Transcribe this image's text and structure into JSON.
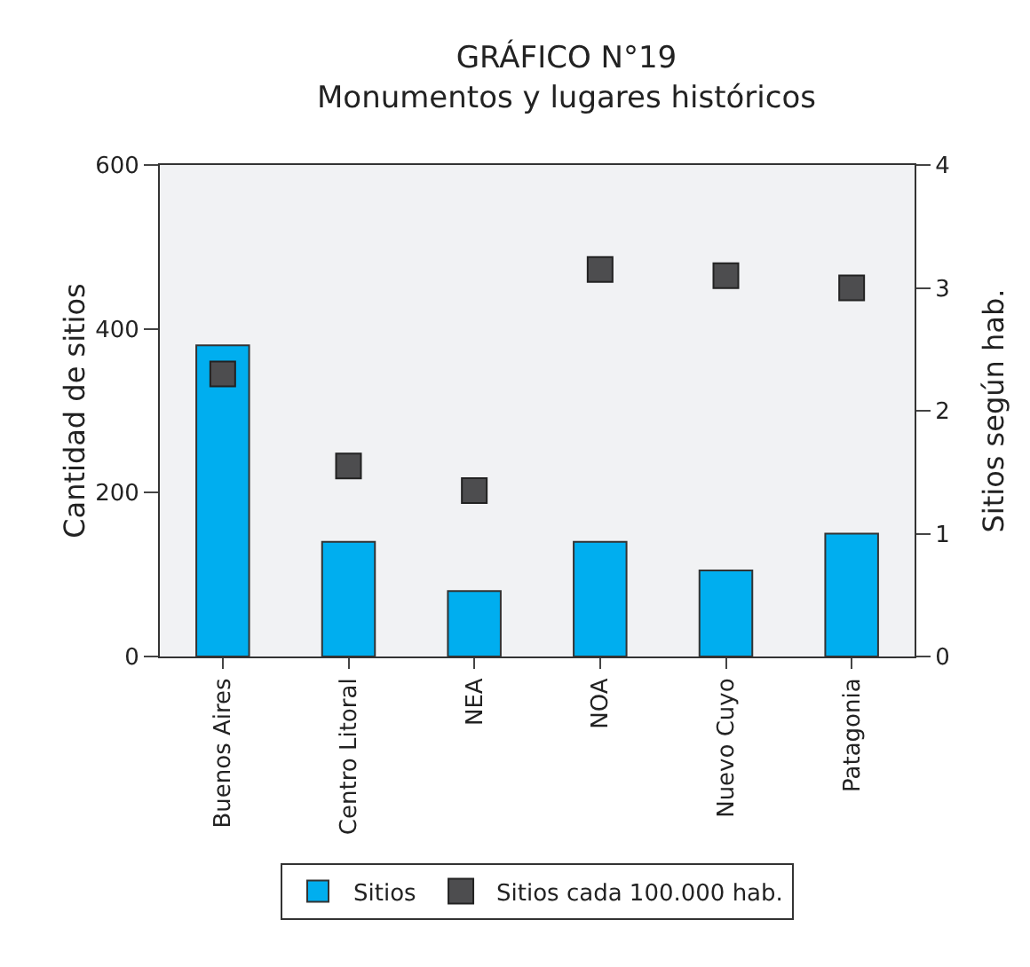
{
  "chart_data": {
    "type": "bar",
    "title": "GRÁFICO N°19",
    "subtitle": "Monumentos y lugares históricos",
    "ylabel": "Cantidad de sitios",
    "y2label": "Sitios según hab.",
    "categories": [
      "Buenos Aires",
      "Centro Litoral",
      "NEA",
      "NOA",
      "Nuevo Cuyo",
      "Patagonia"
    ],
    "series": [
      {
        "name": "Sitios",
        "color": "#00aeef",
        "values": [
          380,
          140,
          80,
          140,
          105,
          150
        ]
      },
      {
        "name": "Sitios cada 100.000 hab.",
        "type": "scatter",
        "axis": "y2",
        "color": "#4d4d4f",
        "values": [
          2.3,
          1.55,
          1.35,
          3.15,
          3.1,
          3.0
        ]
      }
    ],
    "ylim": [
      0,
      600
    ],
    "yticks": [
      0,
      200,
      400,
      600
    ],
    "y2lim": [
      0,
      4
    ],
    "y2ticks": [
      0,
      1,
      2,
      3,
      4
    ],
    "marker": "square",
    "grid": false,
    "legend": "bottom"
  }
}
